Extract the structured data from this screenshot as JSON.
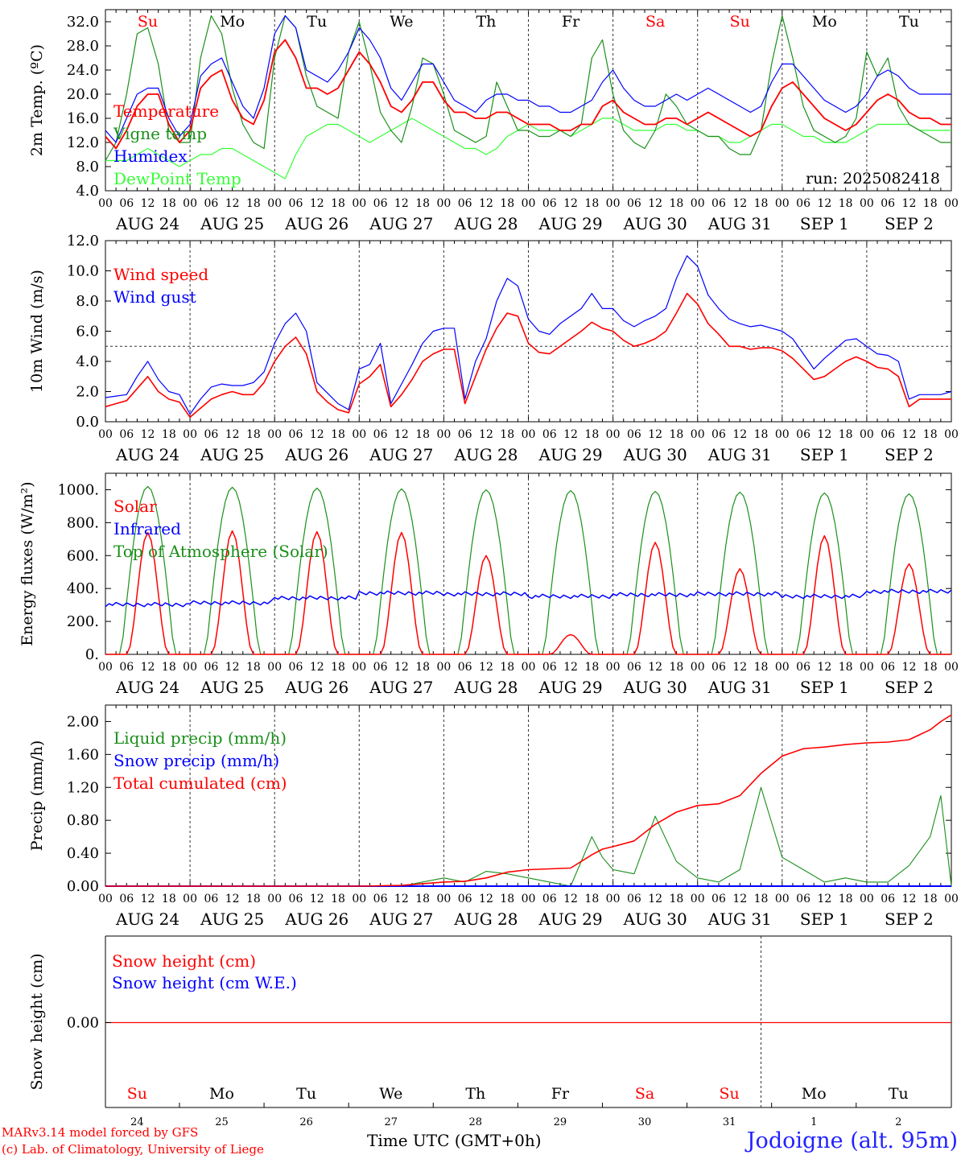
{
  "colors": {
    "red": "#ff0000",
    "blue": "#0000ff",
    "green": "#1a8f1a",
    "lightgreen": "#33ff33",
    "grey": "#333333"
  },
  "footer": {
    "credit_line1": "MARv3.14 model forced by GFS",
    "credit_line2": "(c) Lab. of Climatology, University of Liege",
    "x_title": "Time UTC (GMT+0h)",
    "station": "Jodoigne (alt. 95m)"
  },
  "chart_data": [
    {
      "type": "line",
      "ylabel": "2m Temp. (ºC)",
      "ylim": [
        4,
        34
      ],
      "yticks": [
        "32.0",
        "28.0",
        "24.0",
        "20.0",
        "16.0",
        "12.0",
        "8.0",
        "4.0"
      ],
      "ytick_values": [
        32,
        28,
        24,
        20,
        16,
        12,
        8,
        4
      ],
      "x_tick_labels": [
        "00",
        "06",
        "12",
        "18"
      ],
      "date_labels": [
        "AUG 24",
        "AUG 25",
        "AUG 26",
        "AUG 27",
        "AUG 28",
        "AUG 29",
        "AUG 30",
        "AUG 31",
        "SEP  1",
        "SEP  2"
      ],
      "day_labels": [
        "Su",
        "Mo",
        "Tu",
        "We",
        "Th",
        "Fr",
        "Sa",
        "Su",
        "Mo",
        "Tu"
      ],
      "day_colors": [
        "red",
        "black",
        "black",
        "black",
        "black",
        "black",
        "red",
        "red",
        "black",
        "black"
      ],
      "annotation": "run: 2025082418",
      "x_hours": [
        0,
        3,
        6,
        9,
        12,
        15,
        18,
        21,
        24,
        27,
        30,
        33,
        36,
        39,
        42,
        45,
        48,
        51,
        54,
        57,
        60,
        63,
        66,
        69,
        72,
        75,
        78,
        81,
        84,
        87,
        90,
        93,
        96,
        99,
        102,
        105,
        108,
        111,
        114,
        117,
        120,
        123,
        126,
        129,
        132,
        135,
        138,
        141,
        144,
        147,
        150,
        153,
        156,
        159,
        162,
        165,
        168,
        171,
        174,
        177,
        180,
        183,
        186,
        189,
        192,
        195,
        198,
        201,
        204,
        207,
        210,
        213,
        216,
        219,
        222,
        225,
        228,
        231,
        234,
        237,
        240
      ],
      "series": [
        {
          "name": "Temperature",
          "color": "red",
          "values": [
            13,
            11,
            14,
            18,
            20,
            20,
            15,
            12,
            14,
            21,
            23,
            24,
            19,
            16,
            15,
            19,
            27,
            29,
            26,
            21,
            21,
            20,
            21,
            24,
            27,
            25,
            22,
            18,
            17,
            19,
            22,
            22,
            19,
            17,
            17,
            16,
            16,
            17,
            17,
            16,
            15,
            15,
            15,
            14,
            14,
            15,
            15,
            18,
            19,
            17,
            16,
            15,
            15,
            16,
            16,
            15,
            16,
            17,
            16,
            15,
            14,
            13,
            14,
            18,
            21,
            22,
            20,
            18,
            16,
            15,
            14,
            15,
            17,
            19,
            20,
            19,
            17,
            16,
            16,
            15,
            15
          ]
        },
        {
          "name": "Vigne temp",
          "color": "green",
          "values": [
            9,
            12,
            20,
            30,
            31,
            25,
            14,
            12,
            12,
            26,
            33,
            30,
            21,
            15,
            12,
            11,
            26,
            33,
            31,
            23,
            18,
            17,
            16,
            27,
            32,
            25,
            17,
            14,
            12,
            18,
            26,
            25,
            20,
            14,
            13,
            12,
            13,
            22,
            18,
            14,
            14,
            13,
            13,
            14,
            13,
            15,
            26,
            29,
            20,
            14,
            12,
            11,
            14,
            20,
            18,
            15,
            14,
            13,
            13,
            11,
            10,
            10,
            14,
            25,
            33,
            26,
            18,
            14,
            13,
            12,
            13,
            16,
            27,
            23,
            26,
            18,
            15,
            14,
            13,
            12,
            12
          ]
        },
        {
          "name": "Humidex",
          "color": "blue",
          "values": [
            14,
            12,
            16,
            20,
            21,
            21,
            16,
            13,
            15,
            23,
            25,
            26,
            22,
            18,
            16,
            21,
            30,
            33,
            31,
            24,
            23,
            22,
            24,
            27,
            31,
            29,
            26,
            21,
            19,
            22,
            25,
            25,
            22,
            19,
            18,
            17,
            19,
            20,
            20,
            19,
            19,
            18,
            18,
            17,
            17,
            18,
            19,
            22,
            24,
            21,
            19,
            18,
            18,
            19,
            20,
            19,
            20,
            21,
            20,
            19,
            18,
            17,
            18,
            22,
            25,
            25,
            23,
            21,
            19,
            18,
            17,
            18,
            20,
            23,
            24,
            23,
            21,
            20,
            20,
            20,
            20
          ]
        },
        {
          "name": "DewPoint Temp",
          "color": "lightgreen",
          "values": [
            9,
            9,
            9,
            10,
            11,
            10,
            9,
            8,
            9,
            10,
            10,
            11,
            11,
            10,
            9,
            8,
            7,
            6,
            10,
            13,
            14,
            15,
            15,
            14,
            13,
            12,
            13,
            14,
            15,
            16,
            15,
            14,
            13,
            12,
            11,
            11,
            10,
            11,
            13,
            14,
            15,
            14,
            14,
            14,
            13,
            14,
            15,
            16,
            16,
            15,
            14,
            14,
            14,
            15,
            15,
            14,
            14,
            13,
            13,
            12,
            12,
            13,
            14,
            15,
            15,
            14,
            13,
            13,
            12,
            12,
            12,
            13,
            14,
            15,
            15,
            15,
            15,
            14,
            14,
            14,
            14
          ]
        }
      ]
    },
    {
      "type": "line",
      "ylabel": "10m Wind (m/s)",
      "ylim": [
        0,
        12
      ],
      "yticks": [
        "12.0",
        "10.0",
        "8.0",
        "6.0",
        "4.0",
        "2.0",
        "0.0"
      ],
      "ytick_values": [
        12,
        10,
        8,
        6,
        4,
        2,
        0
      ],
      "reference_line": 5,
      "x_tick_labels": [
        "00",
        "06",
        "12",
        "18"
      ],
      "date_labels": [
        "AUG 24",
        "AUG 25",
        "AUG 26",
        "AUG 27",
        "AUG 28",
        "AUG 29",
        "AUG 30",
        "AUG 31",
        "SEP  1",
        "SEP  2"
      ],
      "x_hours": [
        0,
        3,
        6,
        9,
        12,
        15,
        18,
        21,
        24,
        27,
        30,
        33,
        36,
        39,
        42,
        45,
        48,
        51,
        54,
        57,
        60,
        63,
        66,
        69,
        72,
        75,
        78,
        81,
        84,
        87,
        90,
        93,
        96,
        99,
        102,
        105,
        108,
        111,
        114,
        117,
        120,
        123,
        126,
        129,
        132,
        135,
        138,
        141,
        144,
        147,
        150,
        153,
        156,
        159,
        162,
        165,
        168,
        171,
        174,
        177,
        180,
        183,
        186,
        189,
        192,
        195,
        198,
        201,
        204,
        207,
        210,
        213,
        216,
        219,
        222,
        225,
        228,
        231,
        234,
        237,
        240
      ],
      "series": [
        {
          "name": "Wind speed",
          "color": "red",
          "values": [
            1.0,
            1.2,
            1.4,
            2.2,
            3.0,
            2.0,
            1.5,
            1.3,
            0.3,
            0.9,
            1.5,
            1.8,
            2.0,
            1.8,
            1.8,
            2.6,
            4.0,
            5.0,
            5.6,
            4.5,
            2.0,
            1.3,
            0.8,
            0.6,
            2.5,
            3.0,
            3.8,
            1.0,
            1.8,
            2.8,
            4.0,
            4.5,
            4.8,
            4.8,
            1.2,
            3.0,
            4.8,
            6.2,
            7.2,
            7.0,
            5.2,
            4.6,
            4.5,
            5.0,
            5.5,
            6.0,
            6.6,
            6.2,
            6.0,
            5.4,
            5.0,
            5.2,
            5.5,
            6.0,
            7.2,
            8.5,
            7.8,
            6.5,
            5.8,
            5.0,
            5.0,
            4.8,
            4.9,
            4.9,
            4.7,
            4.2,
            3.5,
            2.8,
            3.0,
            3.5,
            4.0,
            4.3,
            4.0,
            3.6,
            3.5,
            3.0,
            1.0,
            1.5,
            1.5,
            1.5,
            1.5
          ]
        },
        {
          "name": "Wind gust",
          "color": "blue",
          "values": [
            1.6,
            1.7,
            1.8,
            3.0,
            4.0,
            2.8,
            2.0,
            1.8,
            0.5,
            1.5,
            2.3,
            2.5,
            2.4,
            2.4,
            2.6,
            3.3,
            5.2,
            6.5,
            7.2,
            6.0,
            2.6,
            1.9,
            1.2,
            0.8,
            3.5,
            3.8,
            5.2,
            1.2,
            2.5,
            3.8,
            5.2,
            6.0,
            6.2,
            6.2,
            1.5,
            4.0,
            5.5,
            8.0,
            9.5,
            9.0,
            6.8,
            6.0,
            5.8,
            6.5,
            7.0,
            7.5,
            8.5,
            7.5,
            7.5,
            6.7,
            6.3,
            6.7,
            7.0,
            7.5,
            9.5,
            11.0,
            10.3,
            8.4,
            7.5,
            6.8,
            6.5,
            6.3,
            6.4,
            6.2,
            6.0,
            5.5,
            4.5,
            3.5,
            4.2,
            4.8,
            5.4,
            5.5,
            5.0,
            4.5,
            4.4,
            4.0,
            1.5,
            1.8,
            1.8,
            1.8,
            2.0
          ]
        }
      ]
    },
    {
      "type": "line",
      "ylabel": "Energy fluxes (W/m²)",
      "ylim": [
        0,
        1100
      ],
      "yticks": [
        "1000.",
        "800.",
        "600.",
        "400.",
        "200.",
        "0."
      ],
      "ytick_values": [
        1000,
        800,
        600,
        400,
        200,
        0
      ],
      "x_tick_labels": [
        "00",
        "06",
        "12",
        "18"
      ],
      "date_labels": [
        "AUG 24",
        "AUG 25",
        "AUG 26",
        "AUG 27",
        "AUG 28",
        "AUG 29",
        "AUG 30",
        "AUG 31",
        "SEP  1",
        "SEP  2"
      ],
      "toa_daily_peak": [
        1020,
        1015,
        1010,
        1005,
        1000,
        995,
        990,
        985,
        980,
        975
      ],
      "solar_daily_peak": [
        740,
        750,
        745,
        740,
        600,
        120,
        680,
        520,
        720,
        550
      ],
      "infrared_daily": [
        290,
        300,
        330,
        360,
        355,
        340,
        350,
        355,
        340,
        370
      ],
      "series": [
        {
          "name": "Solar",
          "color": "red"
        },
        {
          "name": "Infrared",
          "color": "blue"
        },
        {
          "name": "Top of Atmosphere (Solar)",
          "color": "green"
        }
      ]
    },
    {
      "type": "line",
      "ylabel": "Precip (mm/h)",
      "ylim": [
        0,
        2.2
      ],
      "yticks": [
        "2.00",
        "1.60",
        "1.20",
        "0.80",
        "0.40",
        "0.00"
      ],
      "ytick_values": [
        2.0,
        1.6,
        1.2,
        0.8,
        0.4,
        0.0
      ],
      "x_tick_labels": [
        "00",
        "06",
        "12",
        "18"
      ],
      "date_labels": [
        "AUG 24",
        "AUG 25",
        "AUG 26",
        "AUG 27",
        "AUG 28",
        "AUG 29",
        "AUG 30",
        "AUG 31",
        "SEP  1",
        "SEP  2"
      ],
      "x_hours": [
        0,
        12,
        24,
        36,
        48,
        60,
        72,
        84,
        96,
        102,
        108,
        114,
        120,
        126,
        132,
        138,
        141,
        144,
        150,
        156,
        162,
        168,
        174,
        180,
        186,
        192,
        198,
        204,
        210,
        216,
        222,
        228,
        234,
        237,
        240
      ],
      "series": [
        {
          "name": "Liquid precip (mm/h)",
          "color": "green",
          "values": [
            0,
            0,
            0,
            0,
            0,
            0,
            0,
            0,
            0.1,
            0.05,
            0.18,
            0.15,
            0.1,
            0.05,
            0,
            0.6,
            0.35,
            0.2,
            0.15,
            0.85,
            0.3,
            0.1,
            0.05,
            0.2,
            1.2,
            0.35,
            0.2,
            0.05,
            0.1,
            0.05,
            0.05,
            0.25,
            0.6,
            1.1,
            0
          ]
        },
        {
          "name": "Snow precip (mm/h)",
          "color": "blue",
          "values": [
            0,
            0,
            0,
            0,
            0,
            0,
            0,
            0,
            0,
            0,
            0,
            0,
            0,
            0,
            0,
            0,
            0,
            0,
            0,
            0,
            0,
            0,
            0,
            0,
            0,
            0,
            0,
            0,
            0,
            0,
            0,
            0,
            0,
            0,
            0
          ]
        },
        {
          "name": "Total cumulated (cm)",
          "color": "red",
          "values": [
            0,
            0,
            0,
            0,
            0,
            0,
            0,
            0.01,
            0.05,
            0.06,
            0.1,
            0.17,
            0.2,
            0.21,
            0.22,
            0.38,
            0.45,
            0.48,
            0.55,
            0.75,
            0.9,
            0.98,
            1.0,
            1.1,
            1.37,
            1.58,
            1.67,
            1.69,
            1.72,
            1.74,
            1.75,
            1.78,
            1.9,
            2.0,
            2.08
          ]
        }
      ]
    },
    {
      "type": "line",
      "ylabel": "Snow height (cm)",
      "ytick_label": "0.00",
      "day_labels": [
        "Su",
        "Mo",
        "Tu",
        "We",
        "Th",
        "Fr",
        "Sa",
        "Su",
        "Mo",
        "Tu"
      ],
      "day_colors": [
        "red",
        "black",
        "black",
        "black",
        "black",
        "black",
        "red",
        "red",
        "black",
        "black"
      ],
      "day_numbers": [
        "24",
        "25",
        "26",
        "27",
        "28",
        "29",
        "30",
        "31",
        "1",
        "2"
      ],
      "series": [
        {
          "name": "Snow height (cm)",
          "color": "red",
          "values": [
            0,
            0
          ]
        },
        {
          "name": "Snow height (cm W.E.)",
          "color": "blue"
        }
      ]
    }
  ]
}
